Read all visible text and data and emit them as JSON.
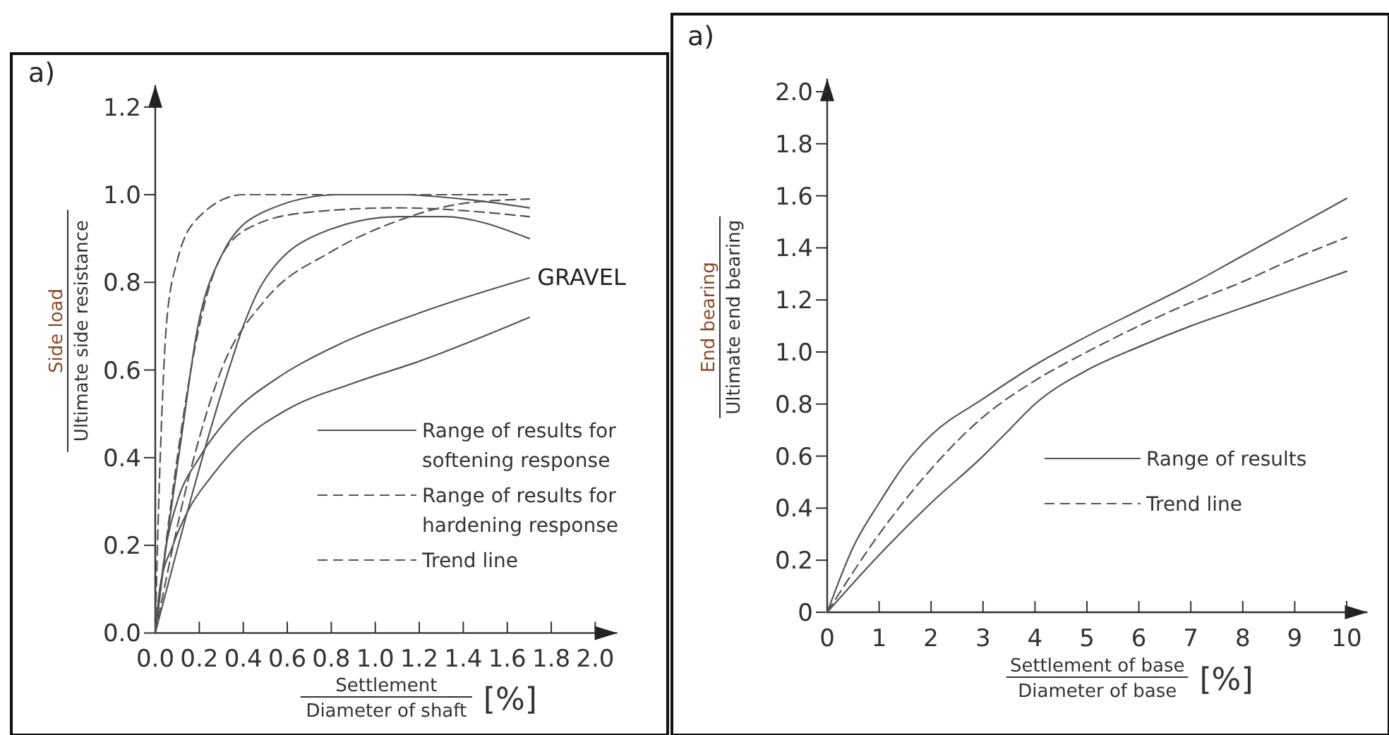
{
  "chart_data": [
    {
      "type": "line",
      "xlabel": "Settlement\nDiameter of shaft\n[%]",
      "ylabel": "Side load\nUltimate side resistance",
      "annotations": [
        "a)",
        "GRAVEL"
      ],
      "xlim": [
        0,
        2.1
      ],
      "ylim": [
        0,
        1.25
      ],
      "xticks": [
        {
          "value": 0,
          "label": "0.0"
        },
        0.2,
        0.4,
        0.6,
        0.8,
        {
          "value": 1,
          "label": "1.0"
        },
        1.2,
        1.4,
        1.6,
        1.8,
        {
          "value": 2,
          "label": "2.0"
        }
      ],
      "yticks": [
        {
          "value": 0,
          "label": "0.0"
        },
        0.2,
        0.4,
        0.6,
        0.8,
        {
          "value": 1,
          "label": "1.0"
        },
        1.2
      ],
      "grid": false,
      "legend": "bottom right",
      "series": [
        {
          "name": "Range of results for softening response",
          "color": "#555555",
          "line_style": "solid",
          "x": [
            0,
            0.05,
            0.12,
            0.19,
            0.3,
            0.49,
            0.83,
            1.11,
            1.4,
            1.7
          ],
          "values": [
            0,
            0.2,
            0.45,
            0.69,
            0.86,
            0.96,
            1.0,
            1.0,
            0.99,
            0.97
          ]
        },
        {
          "color": "#555555",
          "line_style": "solid",
          "x": [
            0,
            0.34,
            0.4,
            0.49,
            0.79,
            1.11,
            1.31,
            1.7
          ],
          "values": [
            0,
            0.61,
            0.7,
            0.8,
            0.92,
            0.95,
            0.95,
            0.9
          ]
        },
        {
          "color": "#555555",
          "line_style": "solid",
          "x": [
            0,
            0.05,
            0.1,
            0.2,
            0.35,
            0.55,
            0.8,
            1.2,
            1.7
          ],
          "values": [
            0,
            0.2,
            0.3,
            0.4,
            0.5,
            0.58,
            0.65,
            0.73,
            0.81
          ]
        },
        {
          "color": "#555555",
          "line_style": "solid",
          "x": [
            0,
            0.02,
            0.08,
            0.15,
            0.26,
            0.4,
            0.6,
            0.9,
            1.2,
            1.7
          ],
          "values": [
            0,
            0.1,
            0.2,
            0.28,
            0.36,
            0.44,
            0.51,
            0.57,
            0.62,
            0.72
          ]
        },
        {
          "name": "Range of results for hardening response",
          "color": "#555555",
          "line_style": "dashed",
          "x": [
            0,
            0.01,
            0.03,
            0.05,
            0.1,
            0.2,
            0.4,
            1.0,
            1.6
          ],
          "values": [
            0,
            0.2,
            0.5,
            0.7,
            0.85,
            0.95,
            1.0,
            1.0,
            1.0
          ]
        },
        {
          "color": "#555555",
          "line_style": "dashed",
          "x": [
            0,
            0.1,
            0.2,
            0.3,
            0.45,
            0.7,
            1.1,
            1.7
          ],
          "values": [
            0,
            0.4,
            0.7,
            0.86,
            0.93,
            0.96,
            0.97,
            0.95
          ]
        },
        {
          "name": "Trend line",
          "color": "#555555",
          "line_style": "dashed",
          "x": [
            0,
            0.15,
            0.3,
            0.5,
            0.8,
            1.1,
            1.4,
            1.7
          ],
          "values": [
            0,
            0.35,
            0.6,
            0.76,
            0.87,
            0.94,
            0.98,
            0.99
          ]
        }
      ]
    },
    {
      "type": "line",
      "xlabel": "Settlement of base\nDiameter of base\n[%]",
      "ylabel": "End bearing\nUltimate end bearing",
      "annotations": [
        "a)"
      ],
      "xlim": [
        0,
        10.4
      ],
      "ylim": [
        0,
        2.05
      ],
      "xticks": [
        0,
        1,
        2,
        3,
        4,
        5,
        6,
        7,
        8,
        9,
        10
      ],
      "yticks": [
        0,
        0.2,
        0.4,
        0.6,
        0.8,
        {
          "value": 1,
          "label": "1.0"
        },
        1.2,
        1.4,
        1.6,
        1.8,
        {
          "value": 2,
          "label": "2.0"
        }
      ],
      "grid": false,
      "legend": "bottom right",
      "series": [
        {
          "name": "Range of results",
          "color": "#555555",
          "line_style": "solid",
          "x": [
            0,
            0.5,
            1,
            1.5,
            2,
            3,
            4,
            5,
            6,
            7,
            8,
            9,
            10
          ],
          "values": [
            0,
            0.25,
            0.42,
            0.57,
            0.68,
            0.82,
            0.95,
            1.06,
            1.16,
            1.26,
            1.37,
            1.48,
            1.59
          ]
        },
        {
          "color": "#555555",
          "line_style": "solid",
          "x": [
            0,
            1,
            2,
            3,
            3.5,
            4,
            5,
            6,
            7,
            8,
            9,
            10
          ],
          "values": [
            0,
            0.22,
            0.42,
            0.6,
            0.7,
            0.8,
            0.93,
            1.02,
            1.1,
            1.17,
            1.24,
            1.31
          ]
        },
        {
          "name": "Trend line",
          "color": "#555555",
          "line_style": "dashed",
          "x": [
            0,
            1,
            2,
            3,
            4,
            5,
            6,
            7,
            8,
            9,
            10
          ],
          "values": [
            0,
            0.3,
            0.55,
            0.75,
            0.89,
            1.0,
            1.1,
            1.19,
            1.27,
            1.36,
            1.44
          ]
        }
      ]
    }
  ]
}
